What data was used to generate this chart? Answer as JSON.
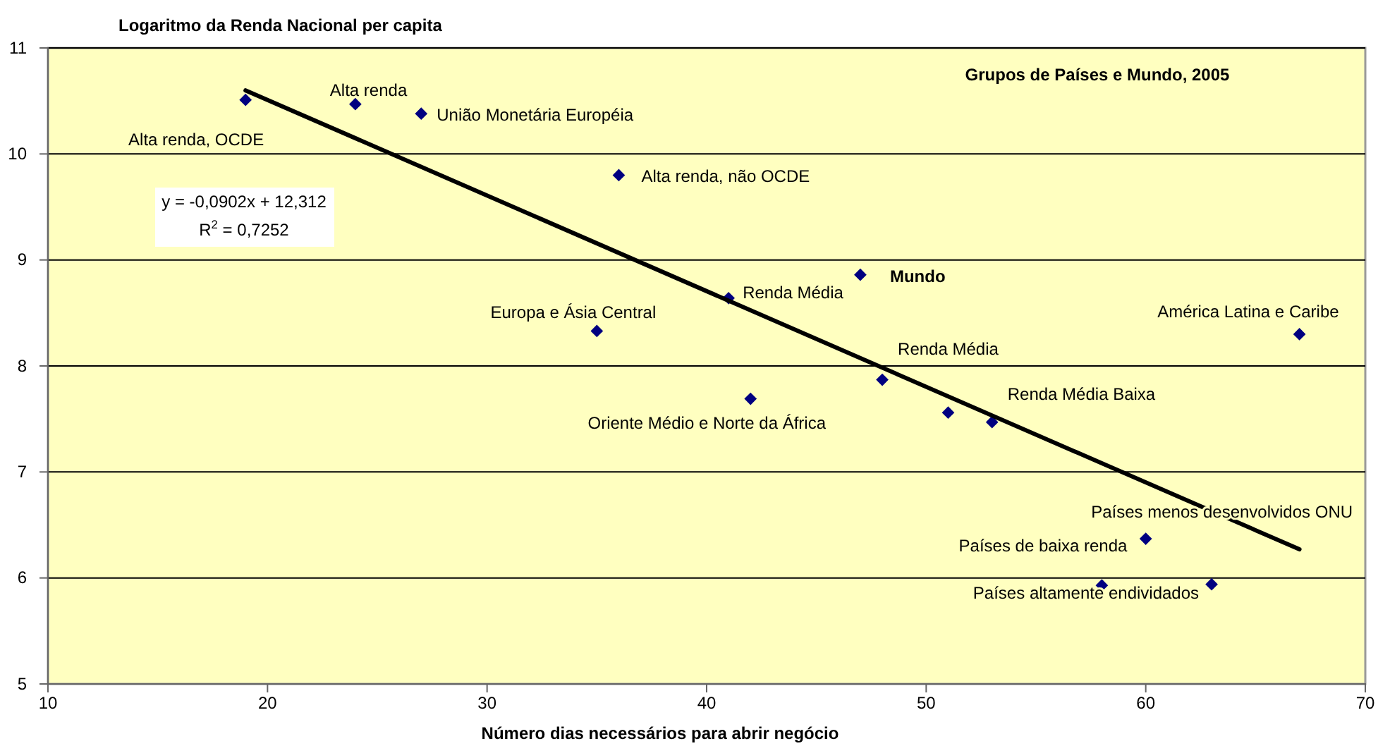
{
  "chart_data": {
    "type": "scatter",
    "title": "Grupos de Países e Mundo, 2005",
    "xlabel": "Número dias necessários para abrir negócio",
    "ylabel": "Logaritmo da Renda Nacional per capita",
    "xlim": [
      10,
      70
    ],
    "xticks": [
      10,
      20,
      30,
      40,
      50,
      60,
      70
    ],
    "ylim": [
      5,
      11
    ],
    "yticks": [
      5,
      6,
      7,
      8,
      9,
      10,
      11
    ],
    "grid": "y",
    "series": [
      {
        "marker": "diamond",
        "color": "#000080",
        "x": [
          19,
          24,
          27,
          36,
          47,
          41,
          35,
          67,
          48,
          42,
          51,
          53,
          60,
          58,
          63
        ],
        "values": [
          10.51,
          10.47,
          10.38,
          9.8,
          8.86,
          8.64,
          8.33,
          8.3,
          7.87,
          7.69,
          7.56,
          7.47,
          6.37,
          5.93,
          5.94
        ]
      },
      {
        "type": "line",
        "marker": "none",
        "color": "#000000",
        "x": [
          19,
          67
        ],
        "values": [
          10.6,
          6.27
        ]
      }
    ],
    "annotations": [
      "y = -0,0902x + 12,312",
      "R$^{2}$ = 0,7252",
      {
        "text": "Alta renda, OCDE",
        "x": 19,
        "y": 10.51
      },
      {
        "text": "Alta renda",
        "x": 24,
        "y": 10.47
      },
      {
        "text": "União Monetária Européia",
        "x": 27,
        "y": 10.38
      },
      {
        "text": "Alta renda, não OCDE",
        "x": 36,
        "y": 9.8
      },
      {
        "text": "Mundo",
        "x": 47,
        "y": 8.86
      },
      {
        "text": "Renda Média",
        "x": 41,
        "y": 8.64
      },
      {
        "text": "Europa e Ásia Central",
        "x": 35,
        "y": 8.33
      },
      {
        "text": "América Latina e Caribe",
        "x": 67,
        "y": 8.3
      },
      {
        "text": "Renda Média",
        "x": 48,
        "y": 7.87
      },
      {
        "text": "Oriente Médio e Norte da África",
        "x": 42,
        "y": 7.69
      },
      {
        "text": "Renda Média Baixa",
        "x": 53,
        "y": 7.47
      },
      {
        "text": "Países menos desenvolvidos ONU",
        "x": 60,
        "y": 6.37
      },
      {
        "text": "Países de baixa renda",
        "x": 58,
        "y": 5.93
      },
      {
        "text": "Países altamente endividados",
        "x": 63,
        "y": 5.94
      }
    ]
  }
}
